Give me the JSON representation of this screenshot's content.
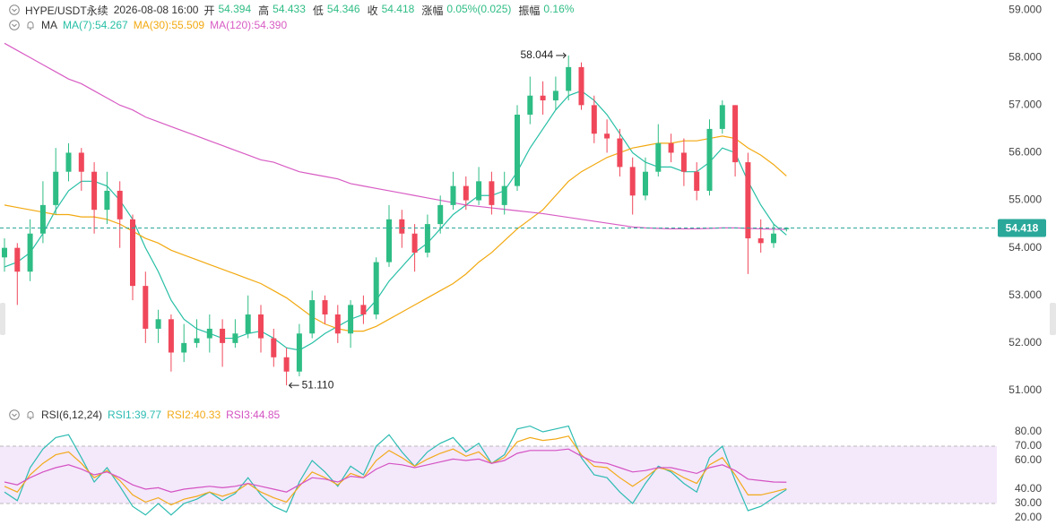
{
  "chart_data": {
    "type": "candlestick",
    "symbol": "HYPE/USDT永续",
    "datetime": "2026-08-08 16:00",
    "info": [
      {
        "label": "开",
        "value": 54.394
      },
      {
        "label": "高",
        "value": 54.433
      },
      {
        "label": "低",
        "value": 54.346
      },
      {
        "label": "收",
        "value": 54.418
      },
      {
        "label": "涨幅",
        "value": "0.05%(0.025)"
      },
      {
        "label": "振幅",
        "value": "0.16%"
      }
    ],
    "up_color": "#2ebd85",
    "down_color": "#f0475a",
    "open": [
      53.8,
      54.0,
      53.5,
      54.3,
      54.9,
      55.6,
      56.0,
      55.6,
      54.8,
      55.2,
      54.6,
      53.2,
      52.3,
      52.5,
      51.8,
      52.0,
      52.1,
      52.3,
      52.0,
      52.2,
      52.6,
      52.1,
      51.7,
      51.4,
      52.2,
      52.9,
      52.6,
      52.2,
      52.8,
      52.6,
      53.7,
      54.6,
      54.3,
      53.9,
      54.5,
      54.9,
      55.3,
      55.0,
      55.4,
      54.9,
      55.3,
      56.8,
      57.2,
      57.1,
      57.3,
      57.8,
      57.0,
      56.4,
      56.3,
      55.7,
      55.1,
      55.6,
      56.2,
      56.0,
      55.6,
      55.2,
      56.5,
      57.0,
      55.8,
      54.2,
      54.1,
      54.394
    ],
    "high": [
      54.2,
      54.1,
      54.6,
      55.4,
      56.1,
      56.2,
      56.1,
      55.8,
      55.6,
      55.4,
      54.7,
      53.5,
      52.7,
      52.6,
      52.4,
      52.5,
      52.6,
      52.5,
      52.5,
      53.0,
      52.8,
      52.3,
      51.9,
      52.4,
      53.1,
      53.0,
      52.8,
      52.9,
      53.0,
      53.8,
      54.9,
      54.8,
      54.5,
      54.7,
      55.1,
      55.6,
      55.5,
      55.7,
      55.6,
      55.6,
      57.0,
      57.6,
      57.5,
      57.6,
      58.044,
      57.9,
      57.2,
      56.7,
      56.5,
      55.9,
      55.9,
      56.6,
      56.4,
      56.3,
      55.8,
      56.7,
      57.1,
      57.0,
      56.0,
      54.6,
      54.5,
      54.433
    ],
    "low": [
      53.5,
      52.8,
      53.3,
      54.1,
      54.7,
      55.4,
      55.2,
      54.3,
      54.5,
      54.0,
      52.9,
      52.0,
      52.0,
      51.4,
      51.6,
      51.9,
      51.8,
      51.5,
      51.9,
      52.1,
      51.8,
      51.5,
      51.11,
      51.3,
      52.1,
      52.4,
      52.0,
      51.9,
      52.4,
      52.5,
      53.6,
      54.0,
      53.5,
      53.8,
      54.3,
      54.8,
      54.8,
      54.9,
      54.7,
      54.7,
      55.2,
      56.6,
      56.8,
      56.9,
      57.1,
      56.9,
      56.2,
      56.0,
      55.5,
      54.7,
      55.0,
      55.5,
      55.8,
      55.3,
      55.0,
      55.1,
      56.4,
      55.5,
      53.45,
      53.9,
      54.0,
      54.346
    ],
    "close": [
      54.0,
      53.5,
      54.3,
      54.9,
      55.6,
      56.0,
      55.6,
      54.8,
      55.2,
      54.6,
      53.2,
      52.3,
      52.5,
      51.8,
      52.0,
      52.1,
      52.3,
      52.0,
      52.2,
      52.6,
      52.1,
      51.7,
      51.4,
      52.2,
      52.9,
      52.6,
      52.2,
      52.8,
      52.6,
      53.7,
      54.6,
      54.3,
      53.9,
      54.5,
      54.9,
      55.3,
      55.0,
      55.4,
      54.9,
      55.3,
      56.8,
      57.2,
      57.1,
      57.3,
      57.8,
      57.0,
      56.4,
      56.3,
      55.7,
      55.1,
      55.6,
      56.2,
      56.0,
      55.6,
      55.2,
      56.5,
      57.0,
      55.8,
      54.2,
      54.1,
      54.3,
      54.418
    ],
    "ma_title": "MA",
    "ma_series": [
      {
        "name": "MA(7):54.267",
        "color": "#26bfa5",
        "values": [
          53.6,
          53.7,
          53.9,
          54.3,
          54.8,
          55.2,
          55.4,
          55.4,
          55.3,
          55.0,
          54.6,
          54.0,
          53.5,
          52.9,
          52.5,
          52.3,
          52.2,
          52.1,
          52.1,
          52.2,
          52.25,
          52.1,
          51.9,
          51.85,
          52.0,
          52.2,
          52.35,
          52.5,
          52.6,
          52.9,
          53.3,
          53.6,
          53.9,
          54.1,
          54.4,
          54.7,
          54.9,
          55.1,
          55.1,
          55.2,
          55.6,
          56.1,
          56.5,
          56.9,
          57.2,
          57.3,
          57.1,
          56.8,
          56.4,
          56.0,
          55.8,
          55.7,
          55.7,
          55.6,
          55.6,
          55.8,
          56.1,
          56.0,
          55.4,
          54.9,
          54.5,
          54.27
        ]
      },
      {
        "name": "MA(30):55.509",
        "color": "#f2a910",
        "values": [
          54.9,
          54.85,
          54.8,
          54.75,
          54.7,
          54.7,
          54.65,
          54.65,
          54.6,
          54.5,
          54.35,
          54.2,
          54.1,
          53.95,
          53.85,
          53.75,
          53.65,
          53.55,
          53.45,
          53.35,
          53.25,
          53.1,
          52.95,
          52.75,
          52.55,
          52.4,
          52.3,
          52.25,
          52.25,
          52.35,
          52.5,
          52.65,
          52.8,
          52.95,
          53.1,
          53.25,
          53.45,
          53.7,
          53.9,
          54.15,
          54.4,
          54.6,
          54.8,
          55.1,
          55.4,
          55.6,
          55.75,
          55.9,
          56.0,
          56.1,
          56.15,
          56.2,
          56.2,
          56.25,
          56.25,
          56.3,
          56.35,
          56.3,
          56.1,
          55.95,
          55.75,
          55.51
        ]
      },
      {
        "name": "MA(120):54.390",
        "color": "#d85cc4",
        "values": [
          58.3,
          58.15,
          58.0,
          57.85,
          57.7,
          57.55,
          57.45,
          57.3,
          57.15,
          57.0,
          56.9,
          56.75,
          56.65,
          56.55,
          56.45,
          56.35,
          56.25,
          56.15,
          56.05,
          55.95,
          55.85,
          55.8,
          55.7,
          55.6,
          55.55,
          55.5,
          55.45,
          55.35,
          55.3,
          55.25,
          55.2,
          55.15,
          55.1,
          55.05,
          55.0,
          54.95,
          54.9,
          54.87,
          54.84,
          54.81,
          54.78,
          54.75,
          54.72,
          54.68,
          54.64,
          54.6,
          54.56,
          54.52,
          54.48,
          54.44,
          54.42,
          54.41,
          54.4,
          54.4,
          54.4,
          54.41,
          54.42,
          54.42,
          54.41,
          54.4,
          54.39,
          54.39
        ]
      }
    ],
    "ylim": [
      50.83,
      59.21
    ],
    "yticks": [
      {
        "value": 59,
        "label": "59.000"
      },
      {
        "value": 58,
        "label": "58.000"
      },
      {
        "value": 57,
        "label": "57.000"
      },
      {
        "value": 56,
        "label": "56.000"
      },
      {
        "value": 55,
        "label": "55.000"
      },
      {
        "value": 54,
        "label": "54.000"
      },
      {
        "value": 53,
        "label": "53.000"
      },
      {
        "value": 52,
        "label": "52.000"
      },
      {
        "value": 51,
        "label": "51.000"
      }
    ],
    "last_price": 54.418,
    "annotations": [
      {
        "value": 58.044,
        "label": "58.044"
      },
      {
        "value": 51.11,
        "label": "51.110"
      }
    ],
    "rsi": {
      "title": "RSI(6,12,24)",
      "ylim": [
        15,
        87.5
      ],
      "yticks": [
        {
          "value": 80,
          "label": "80.00"
        },
        {
          "value": 70,
          "label": "70.00"
        },
        {
          "value": 60,
          "label": "60.00"
        },
        {
          "value": 40,
          "label": "40.00"
        },
        {
          "value": 30,
          "label": "30.00"
        },
        {
          "value": 20,
          "label": "20.00"
        }
      ],
      "band": [
        30,
        70
      ],
      "band_color": "#f4e8fb",
      "series": [
        {
          "name": "RSI1:39.77",
          "color": "#2cbcb2",
          "values": [
            38,
            32,
            55,
            68,
            76,
            78,
            62,
            45,
            55,
            42,
            28,
            22,
            30,
            22,
            30,
            33,
            38,
            32,
            37,
            48,
            36,
            28,
            24,
            45,
            60,
            52,
            42,
            56,
            50,
            70,
            78,
            66,
            56,
            66,
            72,
            76,
            66,
            72,
            58,
            64,
            82,
            84,
            80,
            82,
            84,
            62,
            50,
            48,
            38,
            30,
            44,
            56,
            52,
            44,
            38,
            62,
            70,
            46,
            25,
            28,
            34,
            39.77
          ]
        },
        {
          "name": "RSI2:40.33",
          "color": "#f2aa1a",
          "values": [
            42,
            38,
            50,
            58,
            64,
            66,
            58,
            48,
            53,
            46,
            36,
            31,
            34,
            29,
            33,
            35,
            38,
            35,
            38,
            44,
            38,
            34,
            31,
            42,
            52,
            48,
            43,
            51,
            48,
            60,
            67,
            62,
            56,
            61,
            65,
            68,
            63,
            66,
            58,
            62,
            73,
            76,
            74,
            75,
            77,
            64,
            56,
            55,
            48,
            42,
            48,
            55,
            53,
            48,
            44,
            57,
            62,
            50,
            36,
            36,
            38,
            40.33
          ]
        },
        {
          "name": "RSI3:44.85",
          "color": "#d452c2",
          "values": [
            45,
            43,
            48,
            52,
            55,
            57,
            54,
            50,
            52,
            48,
            43,
            40,
            41,
            38,
            40,
            41,
            42,
            41,
            42,
            44,
            42,
            40,
            38,
            43,
            48,
            47,
            45,
            49,
            48,
            54,
            58,
            57,
            55,
            57,
            59,
            61,
            60,
            61,
            58,
            60,
            65,
            67,
            67,
            67,
            68,
            63,
            59,
            58,
            55,
            52,
            53,
            55,
            55,
            53,
            51,
            55,
            57,
            53,
            47,
            46,
            45,
            44.85
          ]
        }
      ]
    }
  }
}
